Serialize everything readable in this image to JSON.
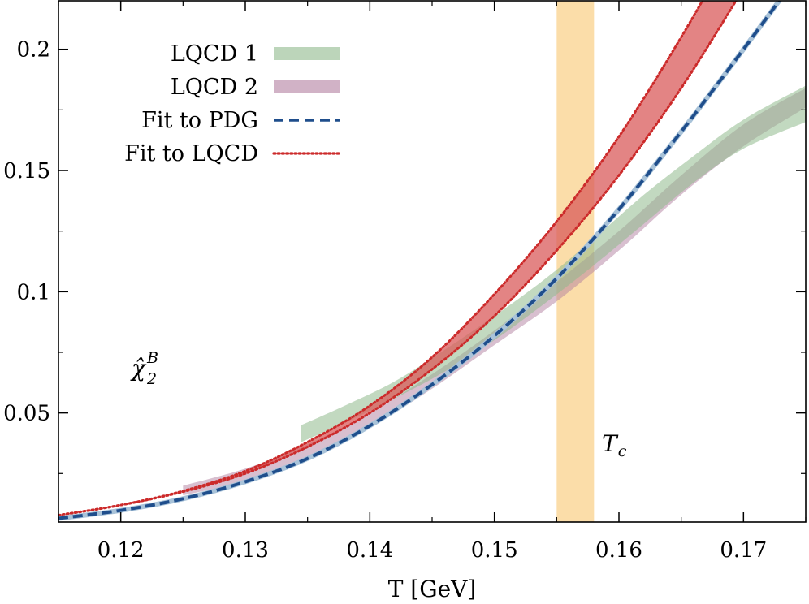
{
  "chart_data": {
    "type": "line",
    "xlabel": "T [GeV]",
    "ylabel": "",
    "xlim": [
      0.115,
      0.175
    ],
    "ylim": [
      0.005,
      0.22
    ],
    "xticks": [
      "0.12",
      "0.13",
      "0.14",
      "0.15",
      "0.16",
      "0.17"
    ],
    "xtick_values": [
      0.12,
      0.13,
      0.14,
      0.15,
      0.16,
      0.17
    ],
    "yticks": [
      "0.05",
      "0.1",
      "0.15",
      "0.2"
    ],
    "ytick_values": [
      0.05,
      0.1,
      0.15,
      0.2
    ],
    "grid": false,
    "legend_position": "top-left",
    "series": [
      {
        "name": "LQCD 1",
        "kind": "band",
        "color": "#8fb98c",
        "x": [
          0.1345,
          0.138,
          0.142,
          0.146,
          0.15,
          0.154,
          0.158,
          0.162,
          0.166,
          0.17,
          0.175
        ],
        "y_low": [
          0.038,
          0.046,
          0.056,
          0.067,
          0.08,
          0.095,
          0.111,
          0.128,
          0.145,
          0.159,
          0.17
        ],
        "y_high": [
          0.045,
          0.053,
          0.063,
          0.076,
          0.09,
          0.105,
          0.122,
          0.14,
          0.156,
          0.171,
          0.185
        ]
      },
      {
        "name": "LQCD 2",
        "kind": "band",
        "color": "#b27fa0",
        "x": [
          0.125,
          0.13,
          0.135,
          0.14,
          0.145,
          0.15,
          0.155,
          0.16,
          0.165,
          0.17,
          0.175
        ],
        "y_low": [
          0.016,
          0.022,
          0.032,
          0.044,
          0.06,
          0.078,
          0.096,
          0.117,
          0.14,
          0.16,
          0.176
        ],
        "y_high": [
          0.02,
          0.027,
          0.037,
          0.05,
          0.066,
          0.084,
          0.104,
          0.125,
          0.148,
          0.169,
          0.184
        ]
      },
      {
        "name": "Fit to PDG",
        "kind": "band+dashed",
        "color": "#1f4e8c",
        "x": [
          0.115,
          0.12,
          0.125,
          0.13,
          0.135,
          0.14,
          0.145,
          0.15,
          0.155,
          0.16,
          0.165,
          0.17,
          0.175
        ],
        "y": [
          0.0065,
          0.0098,
          0.0146,
          0.0216,
          0.0312,
          0.0447,
          0.0617,
          0.0818,
          0.1055,
          0.134,
          0.166,
          0.2,
          0.235
        ]
      },
      {
        "name": "Fit to LQCD",
        "kind": "band+dotted",
        "color": "#cc2a2a",
        "band_color": "#d95b5b",
        "x": [
          0.115,
          0.12,
          0.125,
          0.13,
          0.135,
          0.14,
          0.145,
          0.15,
          0.155,
          0.16,
          0.165,
          0.17
        ],
        "y_low": [
          0.0078,
          0.012,
          0.0175,
          0.025,
          0.036,
          0.05,
          0.068,
          0.09,
          0.117,
          0.148,
          0.184,
          0.225
        ],
        "y_high": [
          0.0078,
          0.012,
          0.0178,
          0.026,
          0.038,
          0.053,
          0.073,
          0.099,
          0.129,
          0.164,
          0.205,
          0.25
        ]
      }
    ],
    "vertical_band": {
      "x_min": 0.155,
      "x_max": 0.158,
      "color": "#f9cf85"
    },
    "annotations": [
      {
        "text": "χ̂",
        "sup": "B",
        "sub": "2"
      },
      {
        "text": "T",
        "sub": "c"
      }
    ]
  }
}
